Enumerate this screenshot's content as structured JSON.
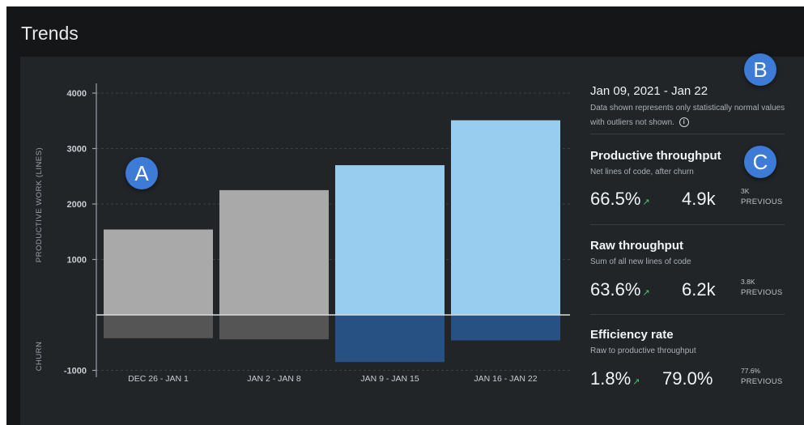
{
  "header": {
    "title": "Trends"
  },
  "chart_data": {
    "type": "bar",
    "categories": [
      "DEC 26 - JAN 1",
      "JAN 2 - JAN 8",
      "JAN 9 - JAN 15",
      "JAN 16 - JAN 22"
    ],
    "series": [
      {
        "values": [
          1540,
          2250,
          2700,
          3510
        ]
      },
      {
        "name": "CHURN",
        "values": [
          -420,
          -440,
          -850,
          -460
        ]
      }
    ],
    "ylabel": "PRODUCTIVE WORK (LINES)",
    "ylim": [
      -1000,
      4000
    ],
    "yticks": [
      {
        "value": 4000,
        "label": "4000"
      },
      {
        "value": 3000,
        "label": "3000"
      },
      {
        "value": 2000,
        "label": "2000"
      },
      {
        "value": 1000,
        "label": "1000"
      },
      {
        "value": -1000,
        "label": "-1000"
      }
    ],
    "grid": true,
    "colors": {
      "past_positive": "#a9a9a9",
      "past_churn": "#555555",
      "current_positive": "#98cdf0",
      "current_churn": "#265182"
    },
    "highlighted_categories": [
      2,
      3
    ]
  },
  "summary": {
    "date_range": "Jan 09, 2021 - Jan 22",
    "note": "Data shown represents only statistically normal values with outliers not shown.",
    "info_icon": "i"
  },
  "metrics": [
    {
      "title": "Productive throughput",
      "subtitle": "Net lines of code, after churn",
      "change": "66.5%",
      "trend_icon": "↗",
      "value": "4.9k",
      "previous_value": "3K",
      "previous_label": "PREVIOUS"
    },
    {
      "title": "Raw throughput",
      "subtitle": "Sum of all new lines of code",
      "change": "63.6%",
      "trend_icon": "↗",
      "value": "6.2k",
      "previous_value": "3.8K",
      "previous_label": "PREVIOUS"
    },
    {
      "title": "Efficiency rate",
      "subtitle": "Raw to productive throughput",
      "change": "1.8%",
      "trend_icon": "↗",
      "value": "79.0%",
      "previous_value": "77.6%",
      "previous_label": "PREVIOUS"
    }
  ],
  "annotations": {
    "a": "A",
    "b": "B",
    "c": "C"
  },
  "accent": "#3d7bd6",
  "trend_up_color": "#4cc36b"
}
